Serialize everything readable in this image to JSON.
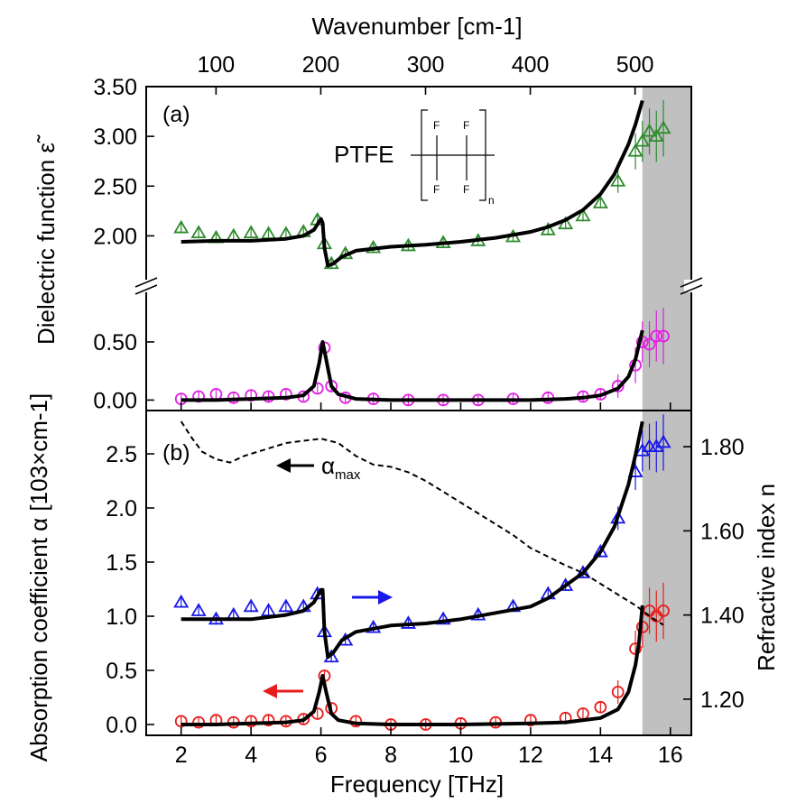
{
  "chart_data": [
    {
      "panel": "(a)",
      "type": "line",
      "title": "",
      "xlabel": "Frequency [THz]",
      "top_xlabel": "Wavenumber [cm-1]",
      "ylabel": "Dielectric function ε̃",
      "xlim": [
        1,
        16.6
      ],
      "top_x_ticks": [
        100,
        200,
        300,
        400,
        500
      ],
      "broken_y_axis": true,
      "upper_segment": {
        "ylim": [
          1.65,
          3.5
        ],
        "ticks": [
          "2.00",
          "2.50",
          "3.00",
          "3.50"
        ]
      },
      "lower_segment": {
        "ylim": [
          -0.09,
          0.88
        ],
        "ticks": [
          "0.00",
          "0.50"
        ]
      },
      "annotation": {
        "material": "PTFE",
        "formula_atoms": [
          "F",
          "F",
          "F",
          "F"
        ],
        "repeat_subscript": "n"
      },
      "shaded_region": {
        "x": [
          15.2,
          16.6
        ],
        "color": "#c0c0c0"
      },
      "series": [
        {
          "role": "real part data",
          "marker": "triangle",
          "color": "#2e8b2e",
          "segment": "upper",
          "x": [
            2.0,
            2.5,
            3.0,
            3.5,
            4.0,
            4.5,
            5.0,
            5.5,
            5.9,
            6.1,
            6.3,
            6.7,
            7.5,
            8.5,
            9.5,
            10.5,
            11.5,
            12.5,
            13.0,
            13.5,
            14.0,
            14.5,
            15.0,
            15.2,
            15.4,
            15.6,
            15.8
          ],
          "y": [
            2.08,
            2.03,
            1.98,
            2.0,
            2.03,
            2.02,
            2.02,
            2.04,
            2.16,
            1.92,
            1.72,
            1.82,
            1.88,
            1.9,
            1.93,
            1.95,
            1.99,
            2.06,
            2.12,
            2.2,
            2.33,
            2.55,
            2.85,
            2.95,
            3.05,
            3.0,
            3.08
          ]
        },
        {
          "role": "real part fit",
          "marker": "none",
          "color": "#000000",
          "segment": "upper",
          "x": [
            2,
            3,
            4,
            5,
            5.5,
            5.8,
            6.0,
            6.05,
            6.1,
            6.2,
            6.35,
            6.6,
            7,
            8,
            9,
            10,
            11,
            12,
            12.5,
            13,
            13.5,
            14,
            14.4,
            14.8,
            15.0,
            15.2
          ],
          "y": [
            1.94,
            1.95,
            1.95,
            1.97,
            2.0,
            2.06,
            2.17,
            2.13,
            1.88,
            1.7,
            1.72,
            1.79,
            1.85,
            1.89,
            1.91,
            1.94,
            1.98,
            2.04,
            2.09,
            2.16,
            2.26,
            2.42,
            2.62,
            2.92,
            3.12,
            3.36
          ]
        },
        {
          "role": "imaginary part data",
          "marker": "circle",
          "color": "#e020e0",
          "segment": "lower",
          "x": [
            2.0,
            2.5,
            3.0,
            3.5,
            4.0,
            4.5,
            5.0,
            5.5,
            5.9,
            6.1,
            6.3,
            6.7,
            7.5,
            8.5,
            9.5,
            10.5,
            11.5,
            12.5,
            13.5,
            14.0,
            14.5,
            15.0,
            15.2,
            15.4,
            15.6,
            15.8
          ],
          "y": [
            0.01,
            0.03,
            0.05,
            0.02,
            0.04,
            0.03,
            0.05,
            0.03,
            0.1,
            0.45,
            0.12,
            0.02,
            0.01,
            0.0,
            0.0,
            0.0,
            0.01,
            0.02,
            0.03,
            0.05,
            0.12,
            0.3,
            0.5,
            0.48,
            0.55,
            0.55
          ]
        },
        {
          "role": "imaginary part fit",
          "marker": "none",
          "color": "#000000",
          "segment": "lower",
          "x": [
            2,
            3,
            4,
            5,
            5.5,
            5.8,
            5.95,
            6.05,
            6.15,
            6.3,
            6.5,
            7,
            8,
            10,
            12,
            13,
            13.5,
            14,
            14.5,
            14.8,
            15.0,
            15.2
          ],
          "y": [
            0.0,
            0.0,
            0.01,
            0.02,
            0.04,
            0.12,
            0.32,
            0.5,
            0.35,
            0.12,
            0.05,
            0.01,
            0.0,
            0.0,
            0.0,
            0.01,
            0.02,
            0.04,
            0.1,
            0.2,
            0.35,
            0.6
          ]
        }
      ]
    },
    {
      "panel": "(b)",
      "type": "line",
      "title": "",
      "xlabel": "Frequency [THz]",
      "ylabel_left": "Absorption coefficient α [103×cm-1]",
      "ylabel_right": "Refractive index n",
      "xlim": [
        1,
        16.6
      ],
      "x_ticks": [
        2,
        4,
        6,
        8,
        10,
        12,
        14,
        16
      ],
      "ylim_left": [
        -0.1,
        2.9
      ],
      "y_ticks_left": [
        "0.0",
        "0.5",
        "1.0",
        "1.5",
        "2.0",
        "2.5"
      ],
      "ylim_right": [
        1.114,
        1.886
      ],
      "y_ticks_right": [
        "1.20",
        "1.40",
        "1.60",
        "1.80"
      ],
      "annotation": {
        "symbol": "α",
        "subscript": "max"
      },
      "shaded_region": {
        "x": [
          15.2,
          16.6
        ],
        "color": "#c0c0c0"
      },
      "series": [
        {
          "role": "absorption data",
          "marker": "circle",
          "color": "#e81c1c",
          "axis": "left",
          "x": [
            2.0,
            2.5,
            3.0,
            3.5,
            4.0,
            4.5,
            5.0,
            5.5,
            5.9,
            6.1,
            6.3,
            7.0,
            8.0,
            9.0,
            10.0,
            11.0,
            12.0,
            13.0,
            13.5,
            14.0,
            14.5,
            15.0,
            15.2,
            15.4,
            15.6,
            15.8
          ],
          "y": [
            0.03,
            0.02,
            0.04,
            0.02,
            0.03,
            0.04,
            0.03,
            0.05,
            0.1,
            0.45,
            0.15,
            0.03,
            0.0,
            0.0,
            0.01,
            0.02,
            0.04,
            0.06,
            0.1,
            0.16,
            0.3,
            0.7,
            0.9,
            1.05,
            1.0,
            1.05
          ]
        },
        {
          "role": "absorption fit",
          "marker": "none",
          "color": "#000000",
          "axis": "left",
          "x": [
            2,
            3,
            4,
            5,
            5.5,
            5.8,
            5.95,
            6.05,
            6.15,
            6.3,
            6.5,
            7,
            8,
            10,
            12,
            13,
            14,
            14.5,
            14.8,
            15.0,
            15.1,
            15.2
          ],
          "y": [
            0.0,
            0.0,
            0.01,
            0.02,
            0.04,
            0.12,
            0.3,
            0.45,
            0.3,
            0.1,
            0.04,
            0.01,
            0.0,
            0.0,
            0.01,
            0.02,
            0.06,
            0.14,
            0.3,
            0.55,
            0.75,
            1.1
          ]
        },
        {
          "role": "refractive index data",
          "marker": "triangle",
          "color": "#1818e8",
          "axis": "right",
          "x": [
            2.0,
            2.5,
            3.0,
            3.5,
            4.0,
            4.5,
            5.0,
            5.5,
            5.9,
            6.1,
            6.3,
            6.7,
            7.5,
            8.5,
            9.5,
            10.5,
            11.5,
            12.5,
            13.0,
            13.5,
            14.0,
            14.5,
            15.0,
            15.2,
            15.4,
            15.6,
            15.8
          ],
          "y": [
            1.43,
            1.41,
            1.39,
            1.4,
            1.42,
            1.41,
            1.42,
            1.42,
            1.45,
            1.36,
            1.3,
            1.34,
            1.37,
            1.38,
            1.39,
            1.4,
            1.42,
            1.45,
            1.47,
            1.5,
            1.55,
            1.63,
            1.74,
            1.79,
            1.8,
            1.8,
            1.81
          ]
        },
        {
          "role": "refractive index fit",
          "marker": "none",
          "color": "#000000",
          "axis": "right",
          "x": [
            2,
            3,
            4,
            5,
            5.5,
            5.8,
            6.0,
            6.05,
            6.1,
            6.2,
            6.35,
            6.6,
            7,
            8,
            9,
            10,
            11,
            12,
            12.5,
            13,
            13.5,
            14,
            14.4,
            14.8,
            15.0,
            15.2
          ],
          "y": [
            1.39,
            1.39,
            1.39,
            1.4,
            1.41,
            1.43,
            1.46,
            1.46,
            1.36,
            1.3,
            1.31,
            1.34,
            1.36,
            1.375,
            1.38,
            1.39,
            1.405,
            1.42,
            1.44,
            1.47,
            1.5,
            1.55,
            1.61,
            1.71,
            1.78,
            1.86
          ]
        },
        {
          "role": "alpha max",
          "marker": "none",
          "style": "dashed",
          "color": "#000000",
          "axis": "left",
          "x": [
            2.0,
            2.3,
            2.6,
            3.0,
            3.4,
            3.8,
            4.2,
            4.6,
            5.0,
            5.5,
            6.0,
            6.5,
            7.0,
            7.5,
            8.0,
            8.5,
            9.0,
            9.5,
            10.0,
            10.5,
            11.0,
            11.5,
            12.0,
            12.5,
            13.0,
            13.5,
            14.0,
            14.5,
            15.0,
            15.5,
            15.8
          ],
          "y": [
            2.8,
            2.65,
            2.52,
            2.45,
            2.42,
            2.48,
            2.52,
            2.56,
            2.6,
            2.62,
            2.64,
            2.6,
            2.48,
            2.4,
            2.38,
            2.33,
            2.25,
            2.15,
            2.05,
            1.95,
            1.85,
            1.75,
            1.63,
            1.55,
            1.47,
            1.4,
            1.3,
            1.2,
            1.1,
            0.98,
            0.92
          ]
        }
      ]
    }
  ]
}
